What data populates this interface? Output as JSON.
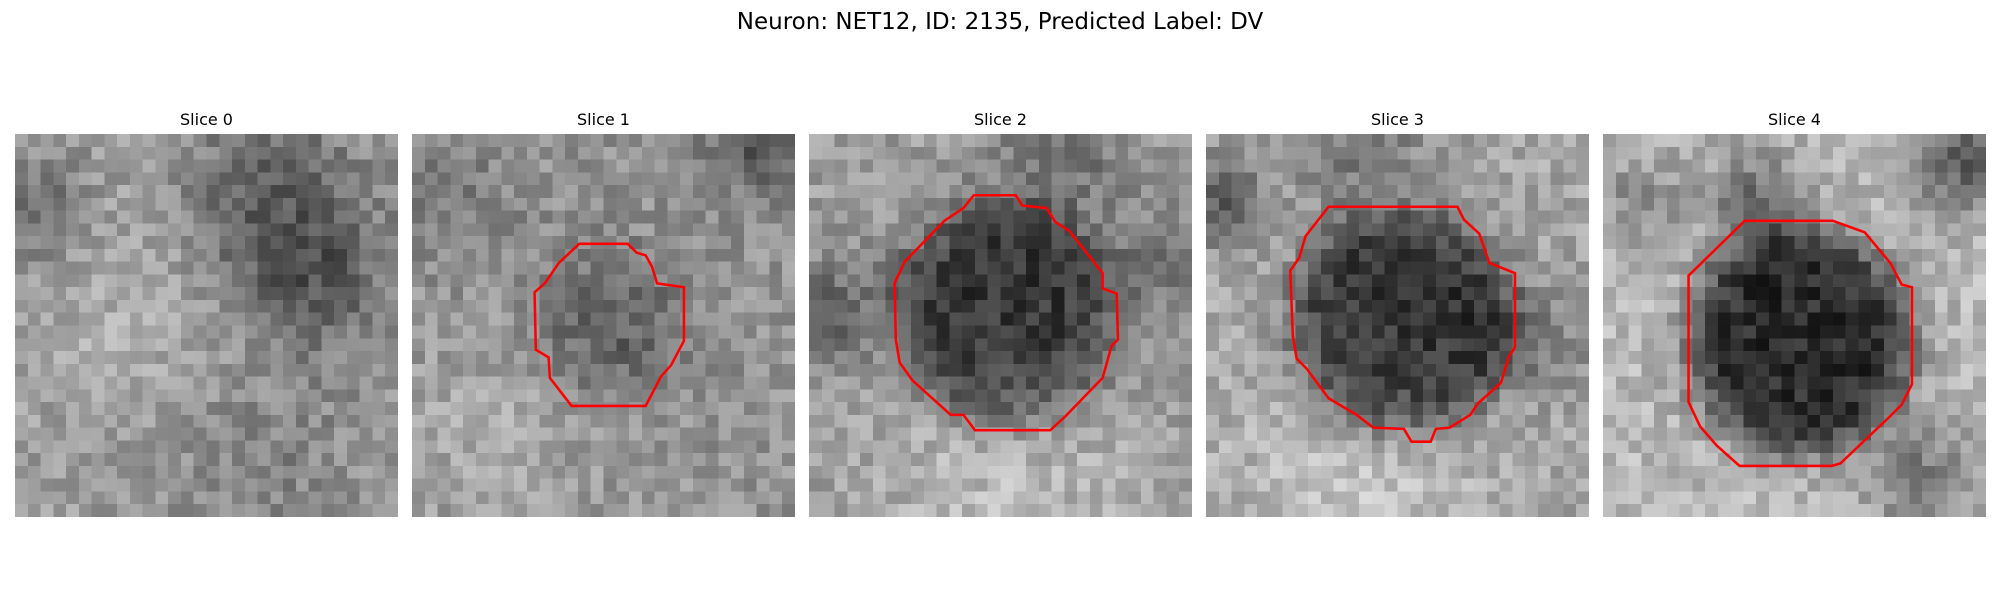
{
  "figure": {
    "suptitle": "Neuron: NET12, ID: 2135, Predicted Label: DV",
    "outline_color": "#ff0000",
    "colormap": "gray",
    "panels": [
      {
        "title": "Slice 0",
        "has_outline": false
      },
      {
        "title": "Slice 1",
        "has_outline": true
      },
      {
        "title": "Slice 2",
        "has_outline": true
      },
      {
        "title": "Slice 3",
        "has_outline": true
      },
      {
        "title": "Slice 4",
        "has_outline": true
      }
    ]
  }
}
